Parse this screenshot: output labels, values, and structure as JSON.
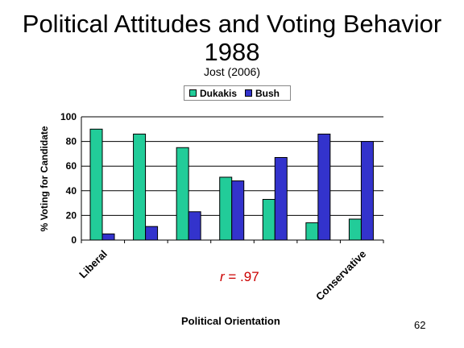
{
  "slide": {
    "title_line1": "Political Attitudes and Voting Behavior",
    "title_line2": "1988",
    "subtitle": "Jost (2006)",
    "page_number": "62",
    "correlation_symbol": "r",
    "correlation_value": " = .97"
  },
  "chart_data": {
    "type": "bar",
    "ylabel": "% Voting for Candidate",
    "xlabel": "Political Orientation",
    "ylim": [
      0,
      100
    ],
    "yticks": [
      "0",
      "20",
      "40",
      "60",
      "80",
      "100"
    ],
    "grid": true,
    "legend_position": "top",
    "categories": [
      "Liberal",
      "",
      "",
      "",
      "",
      "",
      "Conservative"
    ],
    "series": [
      {
        "name": "Dukakis",
        "color": "#22cc99",
        "values": [
          90,
          86,
          75,
          51,
          33,
          14,
          17
        ]
      },
      {
        "name": "Bush",
        "color": "#3333cc",
        "values": [
          5,
          11,
          23,
          48,
          67,
          86,
          80
        ]
      }
    ]
  }
}
